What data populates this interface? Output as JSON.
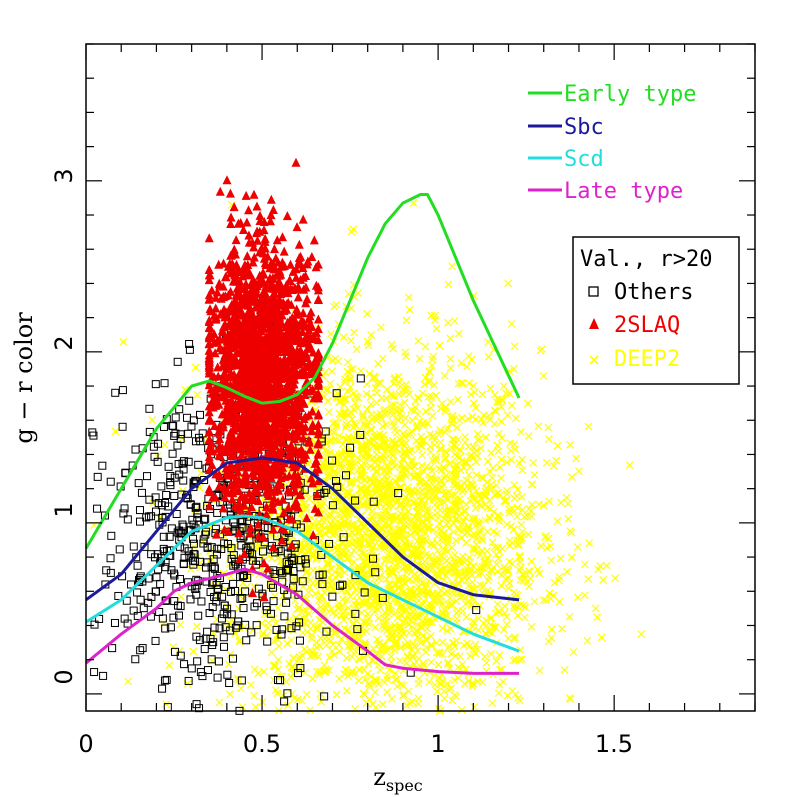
{
  "chart_data": {
    "type": "scatter",
    "xlabel": "z",
    "xlabel_sub": "spec",
    "ylabel": "g − r color",
    "xlim": [
      0,
      1.9
    ],
    "ylim": [
      -0.1,
      3.8
    ],
    "x_ticks": [
      0,
      0.5,
      1,
      1.5
    ],
    "x_tick_labels": [
      "0",
      "0.5",
      "1",
      "1.5"
    ],
    "y_ticks": [
      0,
      1,
      2,
      3
    ],
    "y_tick_labels": [
      "0",
      "1",
      "2",
      "3"
    ],
    "grid": false,
    "curves": [
      {
        "name": "Early type",
        "color": "#22dd22",
        "x": [
          0.0,
          0.1,
          0.2,
          0.3,
          0.35,
          0.4,
          0.45,
          0.5,
          0.55,
          0.6,
          0.65,
          0.7,
          0.75,
          0.8,
          0.85,
          0.9,
          0.95,
          0.97,
          1.0,
          1.1,
          1.23
        ],
        "y": [
          0.85,
          1.2,
          1.55,
          1.8,
          1.83,
          1.79,
          1.74,
          1.7,
          1.71,
          1.75,
          1.85,
          2.05,
          2.3,
          2.55,
          2.75,
          2.87,
          2.92,
          2.92,
          2.8,
          2.3,
          1.73
        ]
      },
      {
        "name": "Sbc",
        "color": "#1a1a9a",
        "x": [
          0.0,
          0.1,
          0.2,
          0.3,
          0.4,
          0.5,
          0.6,
          0.7,
          0.8,
          0.9,
          1.0,
          1.1,
          1.23
        ],
        "y": [
          0.55,
          0.7,
          0.95,
          1.2,
          1.35,
          1.38,
          1.35,
          1.2,
          1.0,
          0.8,
          0.65,
          0.58,
          0.55
        ]
      },
      {
        "name": "Scd",
        "color": "#22dddd",
        "x": [
          0.0,
          0.1,
          0.2,
          0.3,
          0.4,
          0.45,
          0.5,
          0.6,
          0.7,
          0.8,
          0.9,
          1.0,
          1.1,
          1.23
        ],
        "y": [
          0.42,
          0.55,
          0.75,
          0.95,
          1.03,
          1.04,
          1.03,
          0.95,
          0.8,
          0.65,
          0.55,
          0.45,
          0.35,
          0.25
        ]
      },
      {
        "name": "Late type",
        "color": "#dd22cc",
        "x": [
          0.0,
          0.1,
          0.2,
          0.25,
          0.3,
          0.4,
          0.45,
          0.5,
          0.6,
          0.7,
          0.8,
          0.85,
          0.9,
          1.0,
          1.1,
          1.23
        ],
        "y": [
          0.18,
          0.35,
          0.5,
          0.6,
          0.65,
          0.7,
          0.73,
          0.7,
          0.58,
          0.4,
          0.25,
          0.17,
          0.15,
          0.13,
          0.12,
          0.12
        ]
      }
    ],
    "scatter_groups": [
      {
        "name": "Others",
        "marker": "square",
        "color": "#000000",
        "center_x": 0.38,
        "center_y": 0.9,
        "spread_x": 0.17,
        "spread_y": 0.45,
        "count": 650
      },
      {
        "name": "2SLAQ",
        "marker": "triangle",
        "color": "#ee0000",
        "center_x": 0.5,
        "center_y": 1.85,
        "spread_x": 0.08,
        "spread_y": 0.38,
        "count": 1900
      },
      {
        "name": "DEEP2",
        "marker": "cross",
        "color": "#ffff00",
        "center_x": 0.85,
        "center_y": 0.9,
        "spread_x": 0.22,
        "spread_y": 0.55,
        "count": 3000
      }
    ],
    "curve_legend": [
      "Early type",
      "Sbc",
      "Scd",
      "Late type"
    ],
    "sample_legend": {
      "title": "Val., r>20",
      "entries": [
        "Others",
        "2SLAQ",
        "DEEP2"
      ]
    }
  }
}
